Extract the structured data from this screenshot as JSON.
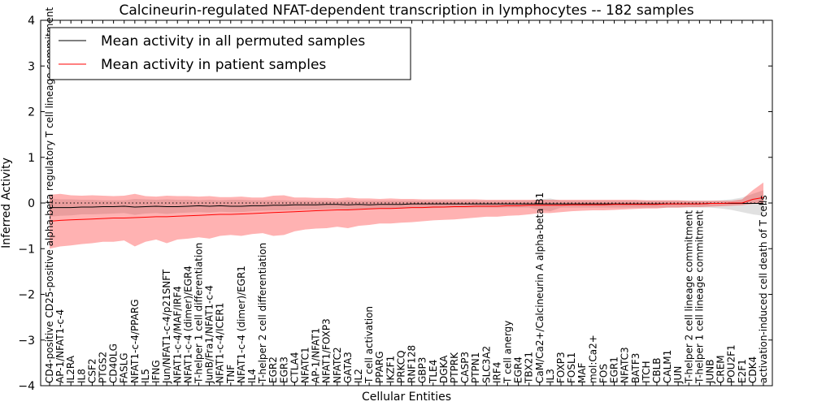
{
  "chart_data": {
    "type": "line",
    "title": "Calcineurin-regulated NFAT-dependent transcription in lymphocytes -- 182 samples",
    "xlabel": "Cellular Entities",
    "ylabel": "Inferred Activity",
    "ylim": [
      -4,
      4
    ],
    "yticks": [
      -4,
      -3,
      -2,
      -1,
      0,
      1,
      2,
      3,
      4
    ],
    "legend_position": "top-left",
    "categories": [
      "CD4-positive CD25-positive alpha-beta regulatory T cell lineage commitment",
      "AP-1/NFAT1-c-4",
      "IL2RA",
      "IL8",
      "CSF2",
      "PTGS2",
      "CD40LG",
      "FASLG",
      "NFAT1-c-4/PPARG",
      "IL5",
      "IFNG",
      "Jun/NFAT1-c-4/p21SNFT",
      "NFAT1-c-4/MAF/IRF4",
      "NFAT1-c-4 (dimer)/EGR4",
      "T-helper 1 cell differentiation",
      "JunB/Fra1/NFAT1-c-4",
      "NFAT1-c-4/ICER1",
      "TNF",
      "NFAT1-c-4 (dimer)/EGR1",
      "IL4",
      "T-helper 2 cell differentiation",
      "EGR2",
      "EGR3",
      "CTLA4",
      "NFATC1",
      "AP-1/NFAT1",
      "NFAT1/FOXP3",
      "NFATC2",
      "GATA3",
      "IL2",
      "T cell activation",
      "PPARG",
      "IKZF1",
      "PRKCQ",
      "RNF128",
      "GBP3",
      "TLE4",
      "DGKA",
      "PTPRK",
      "CASP3",
      "PTPN1",
      "SLC3A2",
      "IRF4",
      "T cell anergy",
      "EGR4",
      "TBX21",
      "CaM/Ca2+/Calcineurin A alpha-beta B1",
      "IL3",
      "FOXP3",
      "FOSL1",
      "MAF",
      "mol:Ca2+",
      "FOS",
      "EGR1",
      "NFATC3",
      "BATF3",
      "ITCH",
      "CBLB",
      "CALM1",
      "JUN",
      "T-helper 2 cell lineage commitment",
      "T-helper 1 cell lineage commitment",
      "JUNB",
      "CREM",
      "POU2F1",
      "E2F1",
      "CDK4",
      "activation-induced cell death of T cells"
    ],
    "series": [
      {
        "name": "Mean activity in all permuted samples",
        "color": "#000000",
        "values": [
          -0.1,
          -0.1,
          -0.1,
          -0.09,
          -0.09,
          -0.08,
          -0.08,
          -0.07,
          -0.09,
          -0.08,
          -0.07,
          -0.08,
          -0.08,
          -0.07,
          -0.06,
          -0.07,
          -0.06,
          -0.07,
          -0.07,
          -0.06,
          -0.06,
          -0.05,
          -0.05,
          -0.04,
          -0.04,
          -0.04,
          -0.03,
          -0.03,
          -0.04,
          -0.03,
          -0.04,
          -0.03,
          -0.03,
          -0.03,
          -0.02,
          -0.02,
          -0.02,
          -0.02,
          -0.02,
          -0.02,
          -0.02,
          -0.02,
          -0.02,
          -0.02,
          -0.02,
          -0.02,
          -0.02,
          -0.02,
          -0.02,
          -0.02,
          -0.02,
          -0.02,
          -0.02,
          -0.02,
          -0.02,
          -0.02,
          -0.02,
          -0.02,
          -0.02,
          -0.02,
          -0.02,
          -0.02,
          -0.01,
          -0.01,
          -0.01,
          -0.01,
          -0.01,
          -0.01
        ],
        "lower": [
          -0.3,
          -0.28,
          -0.27,
          -0.25,
          -0.25,
          -0.24,
          -0.23,
          -0.22,
          -0.26,
          -0.23,
          -0.22,
          -0.24,
          -0.22,
          -0.21,
          -0.2,
          -0.21,
          -0.19,
          -0.2,
          -0.2,
          -0.18,
          -0.17,
          -0.16,
          -0.16,
          -0.15,
          -0.14,
          -0.14,
          -0.13,
          -0.13,
          -0.14,
          -0.13,
          -0.13,
          -0.12,
          -0.12,
          -0.12,
          -0.11,
          -0.11,
          -0.11,
          -0.1,
          -0.1,
          -0.1,
          -0.1,
          -0.1,
          -0.1,
          -0.1,
          -0.1,
          -0.1,
          -0.15,
          -0.18,
          -0.1,
          -0.1,
          -0.1,
          -0.1,
          -0.1,
          -0.1,
          -0.1,
          -0.1,
          -0.1,
          -0.1,
          -0.1,
          -0.1,
          -0.1,
          -0.1,
          -0.1,
          -0.12,
          -0.15,
          -0.2,
          -0.25,
          -0.28
        ],
        "upper": [
          0.1,
          0.08,
          0.08,
          0.07,
          0.07,
          0.06,
          0.06,
          0.06,
          0.09,
          0.08,
          0.07,
          0.08,
          0.07,
          0.07,
          0.06,
          0.07,
          0.06,
          0.07,
          0.07,
          0.06,
          0.06,
          0.06,
          0.06,
          0.05,
          0.05,
          0.05,
          0.05,
          0.05,
          0.06,
          0.05,
          0.05,
          0.05,
          0.05,
          0.05,
          0.05,
          0.05,
          0.05,
          0.05,
          0.05,
          0.05,
          0.05,
          0.05,
          0.05,
          0.05,
          0.05,
          0.05,
          0.08,
          0.1,
          0.05,
          0.05,
          0.05,
          0.05,
          0.05,
          0.05,
          0.05,
          0.05,
          0.05,
          0.05,
          0.05,
          0.05,
          0.05,
          0.05,
          0.05,
          0.06,
          0.08,
          0.12,
          0.2,
          0.28
        ]
      },
      {
        "name": "Mean activity in patient samples",
        "color": "#ff0000",
        "values": [
          -0.4,
          -0.38,
          -0.37,
          -0.36,
          -0.35,
          -0.34,
          -0.33,
          -0.33,
          -0.32,
          -0.31,
          -0.3,
          -0.3,
          -0.29,
          -0.28,
          -0.27,
          -0.26,
          -0.25,
          -0.25,
          -0.24,
          -0.23,
          -0.22,
          -0.21,
          -0.2,
          -0.19,
          -0.18,
          -0.17,
          -0.16,
          -0.15,
          -0.15,
          -0.14,
          -0.13,
          -0.12,
          -0.12,
          -0.11,
          -0.1,
          -0.1,
          -0.09,
          -0.09,
          -0.08,
          -0.08,
          -0.07,
          -0.07,
          -0.07,
          -0.06,
          -0.06,
          -0.05,
          -0.05,
          -0.05,
          -0.05,
          -0.04,
          -0.04,
          -0.04,
          -0.04,
          -0.03,
          -0.03,
          -0.03,
          -0.03,
          -0.03,
          -0.02,
          -0.02,
          -0.02,
          -0.02,
          -0.01,
          -0.01,
          0.0,
          0.0,
          0.08,
          0.12
        ],
        "lower": [
          -1.0,
          -0.95,
          -0.93,
          -0.9,
          -0.88,
          -0.85,
          -0.85,
          -0.82,
          -0.95,
          -0.85,
          -0.8,
          -0.88,
          -0.8,
          -0.78,
          -0.75,
          -0.78,
          -0.72,
          -0.7,
          -0.72,
          -0.68,
          -0.66,
          -0.72,
          -0.7,
          -0.62,
          -0.58,
          -0.56,
          -0.55,
          -0.52,
          -0.55,
          -0.5,
          -0.48,
          -0.45,
          -0.45,
          -0.43,
          -0.42,
          -0.4,
          -0.38,
          -0.37,
          -0.36,
          -0.34,
          -0.32,
          -0.3,
          -0.3,
          -0.28,
          -0.27,
          -0.25,
          -0.22,
          -0.22,
          -0.2,
          -0.18,
          -0.17,
          -0.16,
          -0.16,
          -0.15,
          -0.14,
          -0.13,
          -0.12,
          -0.12,
          -0.1,
          -0.1,
          -0.09,
          -0.09,
          -0.08,
          -0.07,
          -0.06,
          -0.05,
          -0.02,
          0.0
        ],
        "upper": [
          0.18,
          0.2,
          0.17,
          0.16,
          0.17,
          0.16,
          0.15,
          0.16,
          0.2,
          0.15,
          0.14,
          0.16,
          0.15,
          0.15,
          0.14,
          0.15,
          0.13,
          0.13,
          0.14,
          0.12,
          0.12,
          0.16,
          0.17,
          0.12,
          0.12,
          0.11,
          0.11,
          0.1,
          0.12,
          0.1,
          0.1,
          0.09,
          0.1,
          0.09,
          0.09,
          0.08,
          0.08,
          0.08,
          0.08,
          0.08,
          0.08,
          0.07,
          0.07,
          0.07,
          0.07,
          0.07,
          0.07,
          0.07,
          0.07,
          0.07,
          0.07,
          0.07,
          0.07,
          0.07,
          0.07,
          0.07,
          0.06,
          0.06,
          0.06,
          0.06,
          0.05,
          0.05,
          0.05,
          0.05,
          0.05,
          0.08,
          0.28,
          0.45
        ]
      }
    ]
  }
}
